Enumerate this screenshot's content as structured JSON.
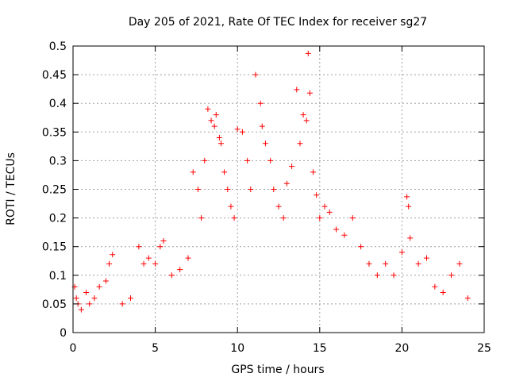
{
  "chart_data": {
    "type": "scatter",
    "title": "Day 205 of 2021, Rate Of TEC Index for receiver sg27",
    "xlabel": "GPS time / hours",
    "ylabel": "ROTI / TECUs",
    "xlim": [
      0,
      25
    ],
    "ylim": [
      0,
      0.5
    ],
    "xticks": [
      0,
      5,
      10,
      15,
      20,
      25
    ],
    "xtick_labels": [
      "0",
      "5",
      "10",
      "15",
      "20",
      "25"
    ],
    "yticks": [
      0,
      0.05,
      0.1,
      0.15,
      0.2,
      0.25,
      0.3,
      0.35,
      0.4,
      0.45,
      0.5
    ],
    "ytick_labels": [
      "0",
      "0.05",
      "0.1",
      "0.15",
      "0.2",
      "0.25",
      "0.3",
      "0.35",
      "0.4",
      "0.45",
      "0.5"
    ],
    "grid": true,
    "marker": "+",
    "series": [
      {
        "name": "ROTI",
        "color": "#ff0000",
        "points": [
          [
            0.1,
            0.08
          ],
          [
            0.2,
            0.06
          ],
          [
            0.3,
            0.05
          ],
          [
            0.5,
            0.04
          ],
          [
            0.8,
            0.07
          ],
          [
            1.0,
            0.05
          ],
          [
            1.3,
            0.06
          ],
          [
            1.6,
            0.08
          ],
          [
            2.0,
            0.09
          ],
          [
            2.2,
            0.12
          ],
          [
            2.4,
            0.136
          ],
          [
            3.0,
            0.05
          ],
          [
            3.5,
            0.06
          ],
          [
            4.0,
            0.15
          ],
          [
            4.3,
            0.12
          ],
          [
            4.6,
            0.13
          ],
          [
            5.0,
            0.12
          ],
          [
            5.3,
            0.15
          ],
          [
            5.5,
            0.16
          ],
          [
            6.0,
            0.1
          ],
          [
            6.5,
            0.11
          ],
          [
            7.0,
            0.13
          ],
          [
            7.3,
            0.28
          ],
          [
            7.6,
            0.25
          ],
          [
            7.8,
            0.2
          ],
          [
            8.0,
            0.3
          ],
          [
            8.2,
            0.39
          ],
          [
            8.4,
            0.37
          ],
          [
            8.6,
            0.36
          ],
          [
            8.7,
            0.38
          ],
          [
            8.9,
            0.34
          ],
          [
            9.0,
            0.33
          ],
          [
            9.2,
            0.28
          ],
          [
            9.4,
            0.25
          ],
          [
            9.6,
            0.22
          ],
          [
            9.8,
            0.2
          ],
          [
            10.0,
            0.355
          ],
          [
            10.3,
            0.35
          ],
          [
            10.6,
            0.3
          ],
          [
            10.8,
            0.25
          ],
          [
            11.1,
            0.45
          ],
          [
            11.4,
            0.4
          ],
          [
            11.5,
            0.36
          ],
          [
            11.7,
            0.33
          ],
          [
            12.0,
            0.3
          ],
          [
            12.2,
            0.25
          ],
          [
            12.5,
            0.22
          ],
          [
            12.8,
            0.2
          ],
          [
            13.0,
            0.26
          ],
          [
            13.3,
            0.29
          ],
          [
            13.6,
            0.424
          ],
          [
            13.8,
            0.33
          ],
          [
            14.0,
            0.38
          ],
          [
            14.2,
            0.37
          ],
          [
            14.3,
            0.487
          ],
          [
            14.4,
            0.418
          ],
          [
            14.6,
            0.28
          ],
          [
            14.8,
            0.24
          ],
          [
            15.0,
            0.2
          ],
          [
            15.3,
            0.22
          ],
          [
            15.6,
            0.21
          ],
          [
            16.0,
            0.18
          ],
          [
            16.5,
            0.17
          ],
          [
            17.0,
            0.2
          ],
          [
            17.5,
            0.15
          ],
          [
            18.0,
            0.12
          ],
          [
            18.5,
            0.1
          ],
          [
            19.0,
            0.12
          ],
          [
            19.5,
            0.1
          ],
          [
            20.0,
            0.14
          ],
          [
            20.3,
            0.237
          ],
          [
            20.4,
            0.22
          ],
          [
            20.5,
            0.165
          ],
          [
            21.0,
            0.12
          ],
          [
            21.5,
            0.13
          ],
          [
            22.0,
            0.08
          ],
          [
            22.5,
            0.07
          ],
          [
            23.0,
            0.1
          ],
          [
            23.5,
            0.12
          ],
          [
            24.0,
            0.06
          ]
        ]
      }
    ]
  }
}
